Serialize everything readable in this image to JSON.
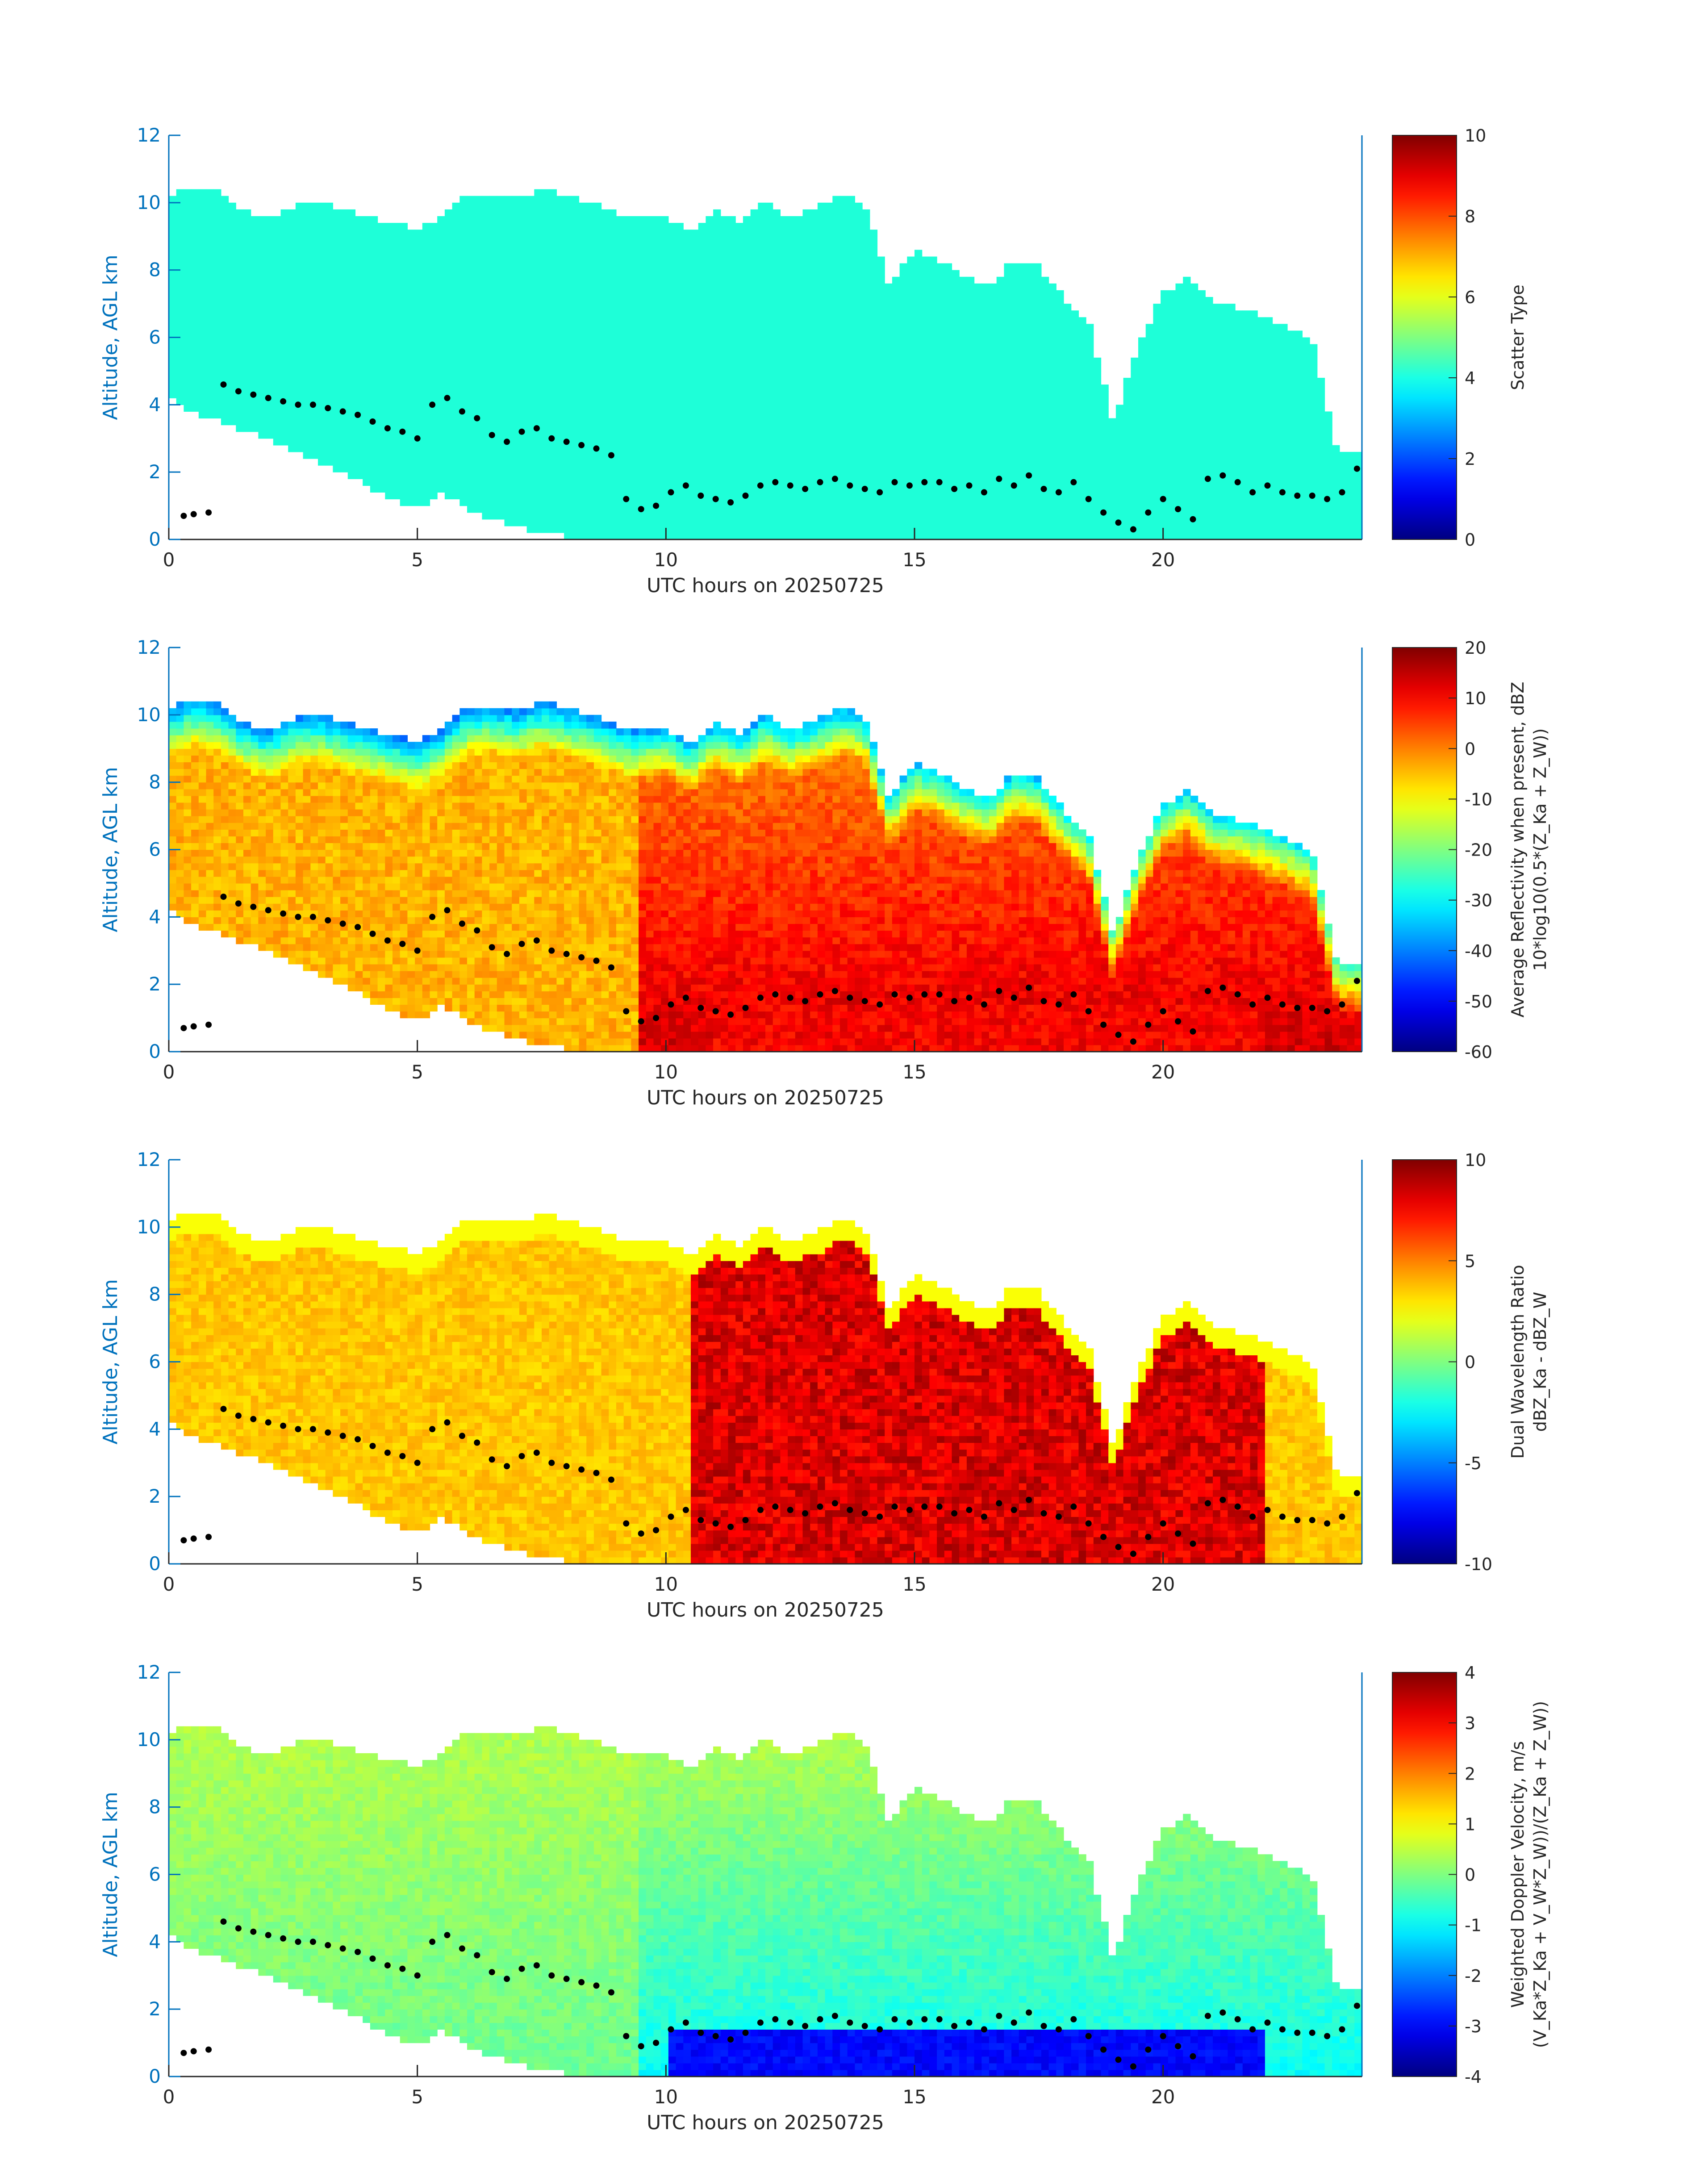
{
  "colors": {
    "axis": "#0072BD",
    "tick_text_left": "#0072BD",
    "tick_text_bottom": "#262626",
    "xlabel": "#262626",
    "ylabel": "#0072BD",
    "cbar_text": "#262626",
    "overlay_points": "#000000",
    "scatter_fill": "#1EFFD8"
  },
  "colormap": "jet",
  "chart_data": [
    {
      "type": "heatmap",
      "id": "scatter_type",
      "xlabel": "UTC hours on 20250725",
      "ylabel": "Altitude, AGL km",
      "xlim": [
        0,
        24
      ],
      "ylim": [
        0,
        12
      ],
      "xticks": [
        0,
        5,
        10,
        15,
        20
      ],
      "yticks": [
        0,
        2,
        4,
        6,
        8,
        10,
        12
      ],
      "colorbar": {
        "label_lines": [
          "Scatter Type"
        ],
        "limits": [
          0,
          10
        ],
        "ticks": [
          0,
          2,
          4,
          6,
          8,
          10
        ]
      },
      "field": "scatter"
    },
    {
      "type": "heatmap",
      "id": "reflectivity",
      "xlabel": "UTC hours on 20250725",
      "ylabel": "Altitude, AGL km",
      "xlim": [
        0,
        24
      ],
      "ylim": [
        0,
        12
      ],
      "xticks": [
        0,
        5,
        10,
        15,
        20
      ],
      "yticks": [
        0,
        2,
        4,
        6,
        8,
        10,
        12
      ],
      "colorbar": {
        "label_lines": [
          "Average Reflectivity when present, dBZ",
          "10*log10(0.5*(Z_Ka + Z_W))"
        ],
        "limits": [
          -60,
          20
        ],
        "ticks": [
          -60,
          -50,
          -40,
          -30,
          -20,
          -10,
          0,
          10,
          20
        ]
      },
      "field": "reflectivity"
    },
    {
      "type": "heatmap",
      "id": "dwr",
      "xlabel": "UTC hours on 20250725",
      "ylabel": "Altitude, AGL km",
      "xlim": [
        0,
        24
      ],
      "ylim": [
        0,
        12
      ],
      "xticks": [
        0,
        5,
        10,
        15,
        20
      ],
      "yticks": [
        0,
        2,
        4,
        6,
        8,
        10,
        12
      ],
      "colorbar": {
        "label_lines": [
          "Dual Wavelength Ratio",
          "dBZ_Ka - dBZ_W"
        ],
        "limits": [
          -10,
          10
        ],
        "ticks": [
          -10,
          -5,
          0,
          5,
          10
        ]
      },
      "field": "dwr"
    },
    {
      "type": "heatmap",
      "id": "doppler",
      "xlabel": "UTC hours on 20250725",
      "ylabel": "Altitude, AGL km",
      "xlim": [
        0,
        24
      ],
      "ylim": [
        0,
        12
      ],
      "xticks": [
        0,
        5,
        10,
        15,
        20
      ],
      "yticks": [
        0,
        2,
        4,
        6,
        8,
        10,
        12
      ],
      "colorbar": {
        "label_lines": [
          "Weighted Doppler Velocity, m/s",
          "(V_Ka*Z_Ka + V_W*Z_W))/(Z_Ka + Z_W))"
        ],
        "limits": [
          -4,
          4
        ],
        "ticks": [
          -4,
          -3,
          -2,
          -1,
          0,
          1,
          2,
          3,
          4
        ]
      },
      "field": "doppler"
    }
  ],
  "cloud_envelope": {
    "x": [
      0,
      0.5,
      1.0,
      1.5,
      2.0,
      2.5,
      3.0,
      3.5,
      4.0,
      4.5,
      5.0,
      5.5,
      6.0,
      6.5,
      7.0,
      7.5,
      8.0,
      8.5,
      9.0,
      9.5,
      10.0,
      10.5,
      11.0,
      11.5,
      12.0,
      12.5,
      13.0,
      13.5,
      14.0,
      14.5,
      15.0,
      15.5,
      16.0,
      16.5,
      17.0,
      17.5,
      18.0,
      18.5,
      19.0,
      19.5,
      20.0,
      20.5,
      21.0,
      21.5,
      22.0,
      22.5,
      23.0,
      23.5,
      24.0
    ],
    "top": [
      10.2,
      10.5,
      10.3,
      9.8,
      9.5,
      9.9,
      10.0,
      9.8,
      9.6,
      9.4,
      9.2,
      9.6,
      10.2,
      10.3,
      10.1,
      10.4,
      10.2,
      10.0,
      9.7,
      9.5,
      9.6,
      9.1,
      9.8,
      9.4,
      10.0,
      9.6,
      9.8,
      10.2,
      10.0,
      7.5,
      8.6,
      8.3,
      7.8,
      7.5,
      8.3,
      8.1,
      7.2,
      6.5,
      3.5,
      5.8,
      7.3,
      7.8,
      7.0,
      6.9,
      6.6,
      6.3,
      5.9,
      2.6,
      2.5
    ],
    "base": [
      4.2,
      3.8,
      3.5,
      3.2,
      3.0,
      2.6,
      2.3,
      2.0,
      1.6,
      1.2,
      0.9,
      1.4,
      0.9,
      0.6,
      0.4,
      0.2,
      0.1,
      0.0,
      0.0,
      0.0,
      0.0,
      0.0,
      0.0,
      0.0,
      0.0,
      0.0,
      0.0,
      0.0,
      0.0,
      0.0,
      0.0,
      0.0,
      0.0,
      0.0,
      0.0,
      0.0,
      0.0,
      0.0,
      0.0,
      0.0,
      0.0,
      0.0,
      0.0,
      0.0,
      0.0,
      0.0,
      0.0,
      0.0,
      0.0
    ]
  },
  "overlay_points": {
    "x": [
      0.3,
      0.5,
      0.8,
      1.1,
      1.4,
      1.7,
      2.0,
      2.3,
      2.6,
      2.9,
      3.2,
      3.5,
      3.8,
      4.1,
      4.4,
      4.7,
      5.0,
      5.3,
      5.6,
      5.9,
      6.2,
      6.5,
      6.8,
      7.1,
      7.4,
      7.7,
      8.0,
      8.3,
      8.6,
      8.9,
      9.2,
      9.5,
      9.8,
      10.1,
      10.4,
      10.7,
      11.0,
      11.3,
      11.6,
      11.9,
      12.2,
      12.5,
      12.8,
      13.1,
      13.4,
      13.7,
      14.0,
      14.3,
      14.6,
      14.9,
      15.2,
      15.5,
      15.8,
      16.1,
      16.4,
      16.7,
      17.0,
      17.3,
      17.6,
      17.9,
      18.2,
      18.5,
      18.8,
      19.1,
      19.4,
      19.7,
      20.0,
      20.3,
      20.6,
      20.9,
      21.2,
      21.5,
      21.8,
      22.1,
      22.4,
      22.7,
      23.0,
      23.3,
      23.6,
      23.9
    ],
    "y": [
      0.7,
      0.75,
      0.8,
      4.6,
      4.4,
      4.3,
      4.2,
      4.1,
      4.0,
      4.0,
      3.9,
      3.8,
      3.7,
      3.5,
      3.3,
      3.2,
      3.0,
      4.0,
      4.2,
      3.8,
      3.6,
      3.1,
      2.9,
      3.2,
      3.3,
      3.0,
      2.9,
      2.8,
      2.7,
      2.5,
      1.2,
      0.9,
      1.0,
      1.4,
      1.6,
      1.3,
      1.2,
      1.1,
      1.3,
      1.6,
      1.7,
      1.6,
      1.5,
      1.7,
      1.8,
      1.6,
      1.5,
      1.4,
      1.7,
      1.6,
      1.7,
      1.7,
      1.5,
      1.6,
      1.4,
      1.8,
      1.6,
      1.9,
      1.5,
      1.4,
      1.7,
      1.2,
      0.8,
      0.5,
      0.3,
      0.8,
      1.2,
      0.9,
      0.6,
      1.8,
      1.9,
      1.7,
      1.4,
      1.6,
      1.4,
      1.3,
      1.3,
      1.2,
      1.4,
      2.1
    ]
  }
}
